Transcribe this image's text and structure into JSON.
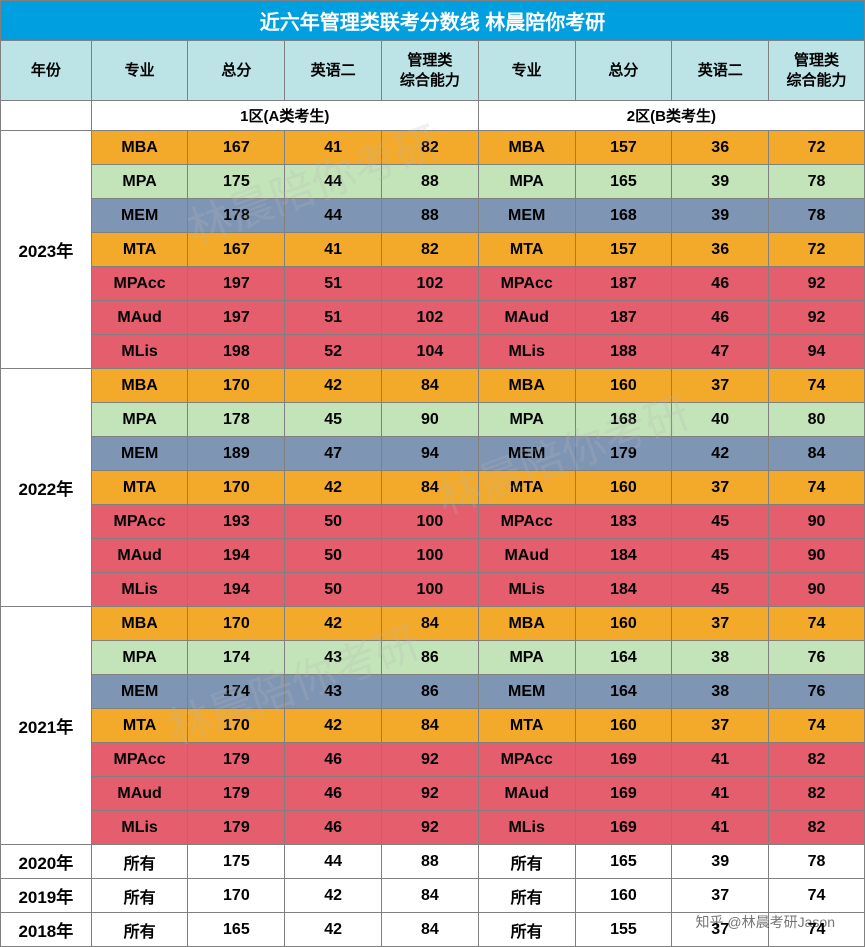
{
  "title": "近六年管理类联考分数线   林晨陪你考研",
  "headers": [
    "年份",
    "专业",
    "总分",
    "英语二",
    "管理类\n综合能力",
    "专业",
    "总分",
    "英语二",
    "管理类\n综合能力"
  ],
  "zones": [
    "1区(A类考生)",
    "2区(B类考生)"
  ],
  "colors": {
    "title_bg": "#009fe0",
    "header_bg": "#bce4e7",
    "orange": "#f3a929",
    "green": "#c3e4b9",
    "blue": "#7f95b4",
    "red": "#e55e6e",
    "white": "#ffffff",
    "border": "#808080"
  },
  "program_color": {
    "MBA": "orange",
    "MPA": "green",
    "MEM": "blue",
    "MTA": "orange",
    "MPAcc": "red",
    "MAud": "red",
    "MLis": "red",
    "所有": "white"
  },
  "years": [
    {
      "year": "2023年",
      "rows": [
        {
          "p": "MBA",
          "a": [
            167,
            41,
            82
          ],
          "b": [
            157,
            36,
            72
          ]
        },
        {
          "p": "MPA",
          "a": [
            175,
            44,
            88
          ],
          "b": [
            165,
            39,
            78
          ]
        },
        {
          "p": "MEM",
          "a": [
            178,
            44,
            88
          ],
          "b": [
            168,
            39,
            78
          ]
        },
        {
          "p": "MTA",
          "a": [
            167,
            41,
            82
          ],
          "b": [
            157,
            36,
            72
          ]
        },
        {
          "p": "MPAcc",
          "a": [
            197,
            51,
            102
          ],
          "b": [
            187,
            46,
            92
          ]
        },
        {
          "p": "MAud",
          "a": [
            197,
            51,
            102
          ],
          "b": [
            187,
            46,
            92
          ]
        },
        {
          "p": "MLis",
          "a": [
            198,
            52,
            104
          ],
          "b": [
            188,
            47,
            94
          ]
        }
      ]
    },
    {
      "year": "2022年",
      "rows": [
        {
          "p": "MBA",
          "a": [
            170,
            42,
            84
          ],
          "b": [
            160,
            37,
            74
          ]
        },
        {
          "p": "MPA",
          "a": [
            178,
            45,
            90
          ],
          "b": [
            168,
            40,
            80
          ]
        },
        {
          "p": "MEM",
          "a": [
            189,
            47,
            94
          ],
          "b": [
            179,
            42,
            84
          ]
        },
        {
          "p": "MTA",
          "a": [
            170,
            42,
            84
          ],
          "b": [
            160,
            37,
            74
          ]
        },
        {
          "p": "MPAcc",
          "a": [
            193,
            50,
            100
          ],
          "b": [
            183,
            45,
            90
          ]
        },
        {
          "p": "MAud",
          "a": [
            194,
            50,
            100
          ],
          "b": [
            184,
            45,
            90
          ]
        },
        {
          "p": "MLis",
          "a": [
            194,
            50,
            100
          ],
          "b": [
            184,
            45,
            90
          ]
        }
      ]
    },
    {
      "year": "2021年",
      "rows": [
        {
          "p": "MBA",
          "a": [
            170,
            42,
            84
          ],
          "b": [
            160,
            37,
            74
          ]
        },
        {
          "p": "MPA",
          "a": [
            174,
            43,
            86
          ],
          "b": [
            164,
            38,
            76
          ]
        },
        {
          "p": "MEM",
          "a": [
            174,
            43,
            86
          ],
          "b": [
            164,
            38,
            76
          ]
        },
        {
          "p": "MTA",
          "a": [
            170,
            42,
            84
          ],
          "b": [
            160,
            37,
            74
          ]
        },
        {
          "p": "MPAcc",
          "a": [
            179,
            46,
            92
          ],
          "b": [
            169,
            41,
            82
          ]
        },
        {
          "p": "MAud",
          "a": [
            179,
            46,
            92
          ],
          "b": [
            169,
            41,
            82
          ]
        },
        {
          "p": "MLis",
          "a": [
            179,
            46,
            92
          ],
          "b": [
            169,
            41,
            82
          ]
        }
      ]
    },
    {
      "year": "2020年",
      "rows": [
        {
          "p": "所有",
          "a": [
            175,
            44,
            88
          ],
          "b": [
            165,
            39,
            78
          ]
        }
      ]
    },
    {
      "year": "2019年",
      "rows": [
        {
          "p": "所有",
          "a": [
            170,
            42,
            84
          ],
          "b": [
            160,
            37,
            74
          ]
        }
      ]
    },
    {
      "year": "2018年",
      "rows": [
        {
          "p": "所有",
          "a": [
            165,
            42,
            84
          ],
          "b": [
            155,
            37,
            74
          ]
        }
      ]
    }
  ],
  "watermark_corner": "知乎 @林晨考研Jason",
  "watermark_diag": "林晨陪你考研",
  "col_widths_pct": [
    10.5,
    11.2,
    11.2,
    11.2,
    11.2,
    11.2,
    11.2,
    11.2,
    11.1
  ]
}
